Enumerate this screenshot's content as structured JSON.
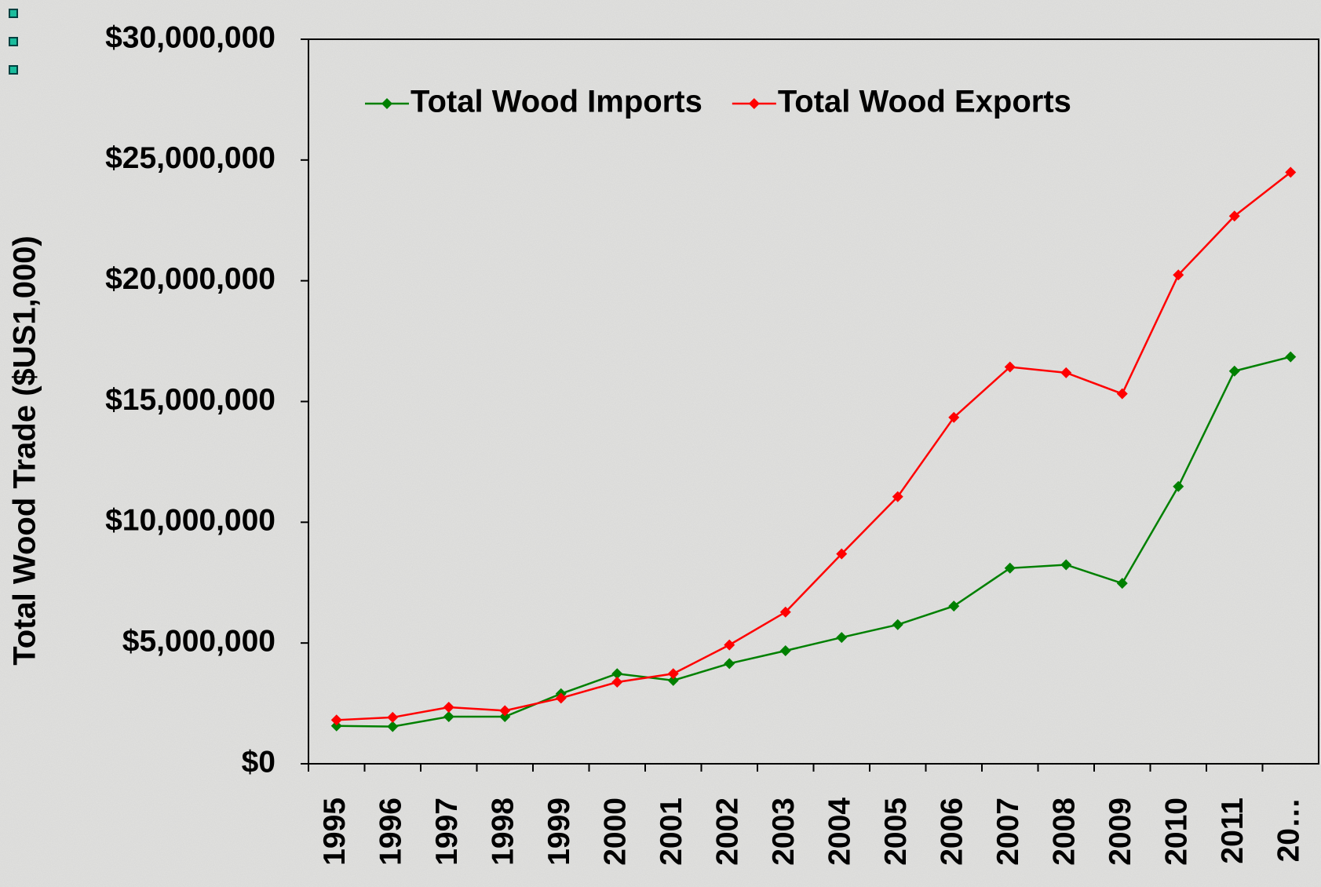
{
  "chart_data": {
    "type": "line",
    "y_label": "Total Wood Trade ($US1,000)",
    "categories": [
      "1995",
      "1996",
      "1997",
      "1998",
      "1999",
      "2000",
      "2001",
      "2002",
      "2003",
      "2004",
      "2005",
      "2006",
      "2007",
      "2008",
      "2009",
      "2010",
      "2011",
      "20…"
    ],
    "series": [
      {
        "name": "Total Wood Imports",
        "color": "#008000",
        "values": [
          1570000,
          1540000,
          1950000,
          1950000,
          2900000,
          3730000,
          3450000,
          4150000,
          4680000,
          5230000,
          5760000,
          6530000,
          8100000,
          8240000,
          7470000,
          11480000,
          16260000,
          16850000
        ]
      },
      {
        "name": "Total Wood Exports",
        "color": "#ff0000",
        "values": [
          1810000,
          1920000,
          2340000,
          2200000,
          2720000,
          3380000,
          3730000,
          4920000,
          6280000,
          8690000,
          11060000,
          14340000,
          16430000,
          16190000,
          15320000,
          20240000,
          22680000,
          24490000
        ]
      }
    ],
    "ylim": [
      0,
      30000000
    ],
    "yticks": [
      {
        "value": 0,
        "label": "$0"
      },
      {
        "value": 5000000,
        "label": "$5,000,000"
      },
      {
        "value": 10000000,
        "label": "$10,000,000"
      },
      {
        "value": 15000000,
        "label": "$15,000,000"
      },
      {
        "value": 20000000,
        "label": "$20,000,000"
      },
      {
        "value": 25000000,
        "label": "$25,000,000"
      },
      {
        "value": 30000000,
        "label": "$30,000,000"
      }
    ],
    "legend": "top-left"
  }
}
